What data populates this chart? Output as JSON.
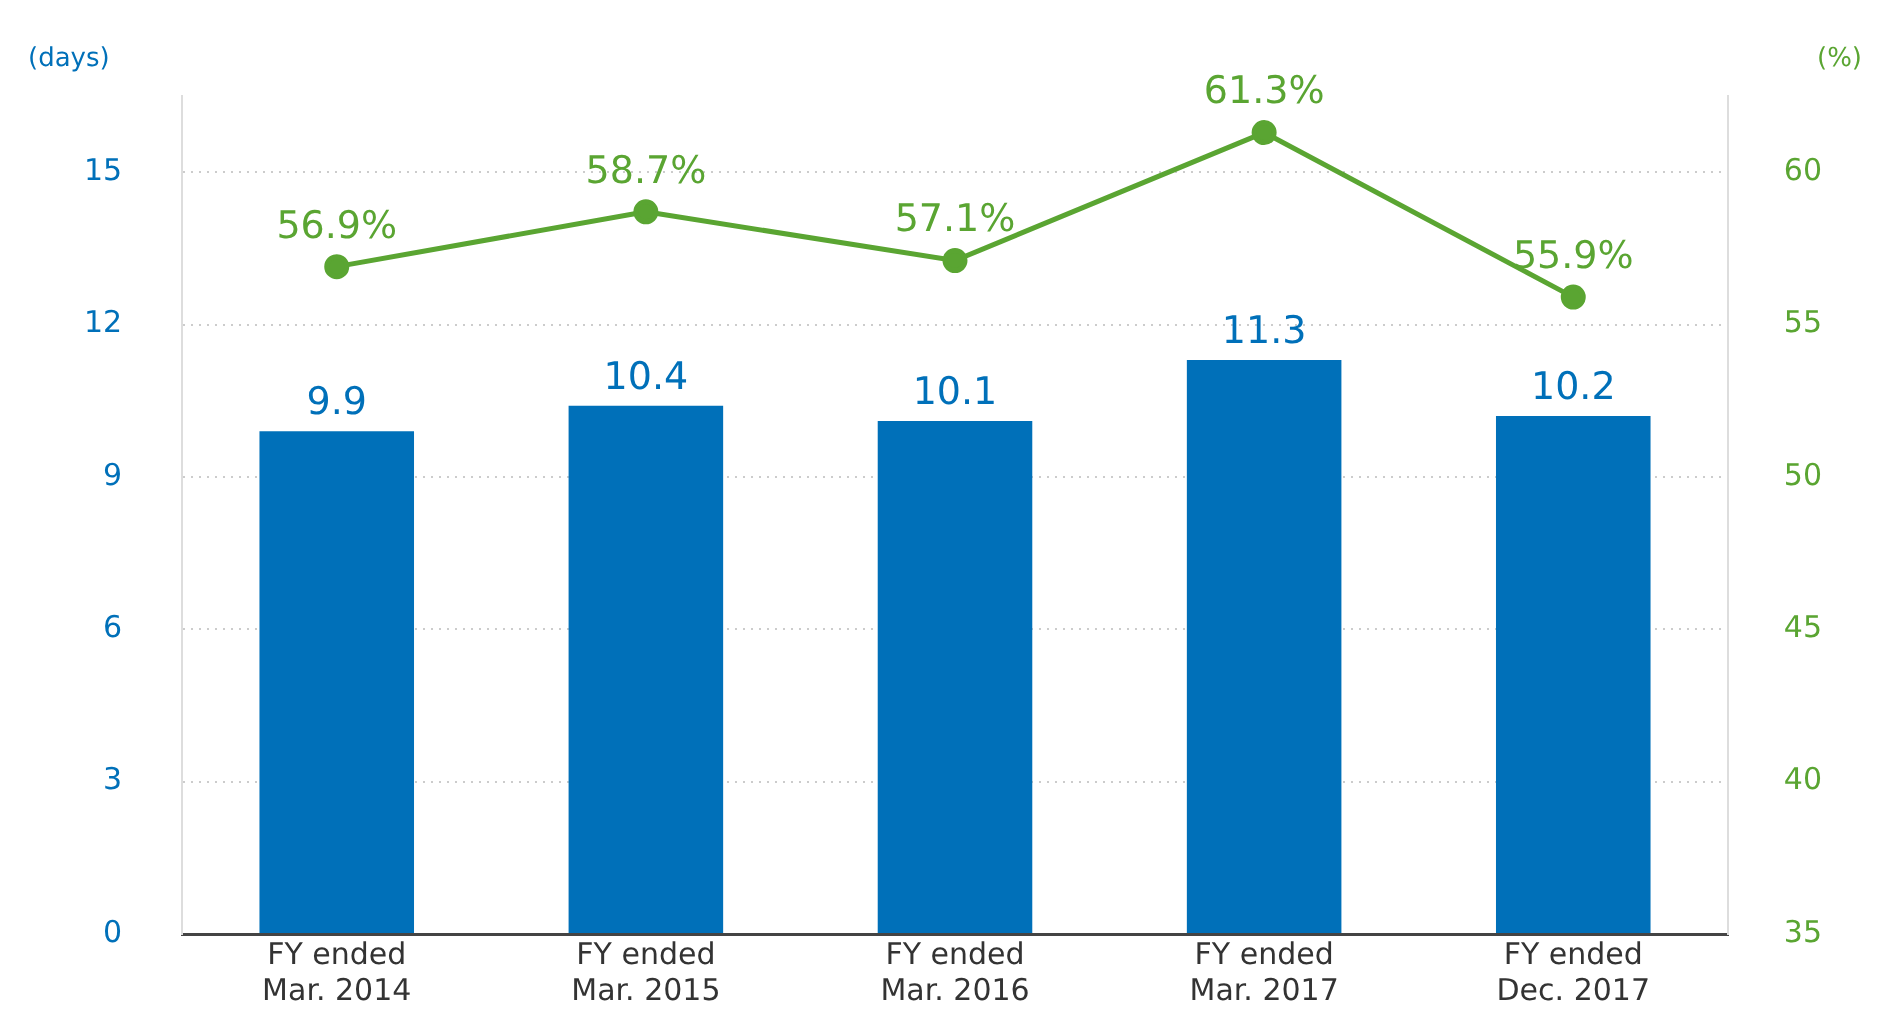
{
  "chart_data": {
    "type": "bar",
    "ylabel": "(days)",
    "y2label": "(%)",
    "categories": [
      "FY ended\nMar. 2014",
      "FY ended\nMar. 2015",
      "FY ended\nMar. 2016",
      "FY ended\nMar. 2017",
      "FY ended\nDec. 2017"
    ],
    "series": [
      {
        "color": "#0070b9",
        "values": [
          9.9,
          10.4,
          10.1,
          11.3,
          10.2
        ],
        "value_labels": [
          "9.9",
          "10.4",
          "10.1",
          "11.3",
          "10.2"
        ]
      },
      {
        "type": "line",
        "axis": "y2",
        "color": "#5aa532",
        "values": [
          56.9,
          58.7,
          57.1,
          61.3,
          55.9
        ],
        "value_labels": [
          "56.9%",
          "58.7%",
          "57.1%",
          "61.3%",
          "55.9%"
        ],
        "marker": "circle"
      }
    ],
    "ylim": [
      0,
      16.5
    ],
    "yticks": [
      0,
      3,
      6,
      9,
      12,
      15
    ],
    "y2lim": [
      35,
      62.5
    ],
    "y2ticks": [
      35,
      40,
      45,
      50,
      55,
      60
    ],
    "grid": "y",
    "legend": false
  }
}
